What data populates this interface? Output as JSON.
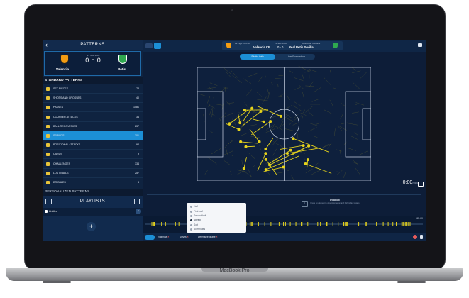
{
  "device": {
    "brand_label": "MacBook Pro"
  },
  "sidebar": {
    "title": "PATTERNS",
    "match": {
      "date": "21 SEP 2018",
      "score": "0 : 0",
      "home_team": "Valencia",
      "away_team": "Betis"
    },
    "standard_header": "STANDARD PATTERNS",
    "patterns": [
      {
        "label": "SET PIECES",
        "count": "73"
      },
      {
        "label": "SHOTS AND CROSSES",
        "count": "40"
      },
      {
        "label": "PASSES",
        "count": "1081"
      },
      {
        "label": "COUNTER ATTACKS",
        "count": "34"
      },
      {
        "label": "BALL RECOVERIES",
        "count": "237"
      },
      {
        "label": "SPRINTS",
        "count": "301"
      },
      {
        "label": "POSITIONAL ATTACKS",
        "count": "92"
      },
      {
        "label": "CARDS",
        "count": "9"
      },
      {
        "label": "CHALLENGES",
        "count": "334"
      },
      {
        "label": "LOST BALLS",
        "count": "257"
      },
      {
        "label": "DRIBBLES",
        "count": "4"
      }
    ],
    "personalized_header": "PERSONALIZED PATTERNS",
    "playlists": {
      "title": "PLAYLISTS",
      "items": [
        {
          "label": "Untitled"
        }
      ],
      "add_label": "+"
    }
  },
  "topbar": {
    "league": "La Liga 2018-19",
    "date": "21 SEP 2018",
    "stadium": "Estadio de Mestalla",
    "home_team": "Valencia CF",
    "score": "0 - 0",
    "away_team": "Real Betis Sevilla"
  },
  "view_toggle": {
    "active": "Static info",
    "inactive": "Live Formation"
  },
  "player": {
    "current_time": "0:00",
    "total_time": "/95:00"
  },
  "info_panel": {
    "title": "Infobox",
    "text": "Press an element to view information and highlighted details"
  },
  "timeline": {
    "end_time": "95:00"
  },
  "dropdown_menu": {
    "items": [
      "Half",
      "First half",
      "Second half",
      "Speed",
      "Sort",
      "All minutes"
    ]
  },
  "filters": [
    {
      "label": "Valencia"
    },
    {
      "label": "Moves"
    },
    {
      "label": "Defensive phase"
    }
  ],
  "colors": {
    "accent": "#1c8fd6",
    "sprint_arrow": "#e6d31c",
    "remove_x": "#e65b5b",
    "screen_bg": "#0b1a33"
  }
}
